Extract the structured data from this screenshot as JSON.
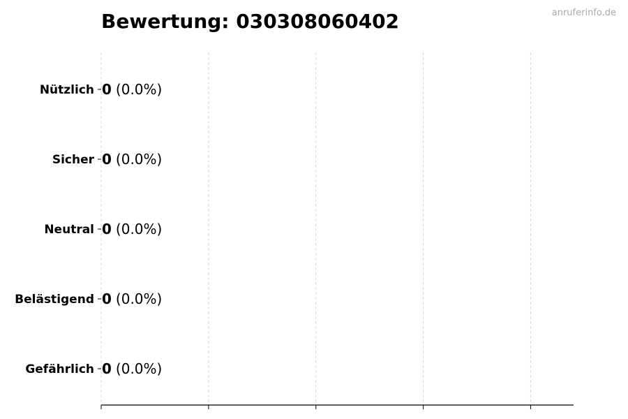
{
  "watermark": "anruferinfo.de",
  "chart_data": {
    "type": "bar",
    "orientation": "horizontal",
    "title": "Bewertung: 030308060402",
    "xlabel": "",
    "ylabel": "",
    "categories": [
      "Nützlich",
      "Sicher",
      "Neutral",
      "Belästigend",
      "Gefährlich"
    ],
    "values": [
      0,
      0,
      0,
      0,
      0
    ],
    "data_labels": [
      {
        "count": "0",
        "percent": "(0.0%)"
      },
      {
        "count": "0",
        "percent": "(0.0%)"
      },
      {
        "count": "0",
        "percent": "(0.0%)"
      },
      {
        "count": "0",
        "percent": "(0.0%)"
      },
      {
        "count": "0",
        "percent": "(0.0%)"
      }
    ],
    "xlim": [
      0,
      4.4
    ],
    "xticks": [
      0,
      1,
      2,
      3,
      4
    ],
    "xtick_labels_shown": false,
    "grid": "x, dashed",
    "legend": "none",
    "colors": {
      "bar_edge": "#000000",
      "grid": "#d9d9d9",
      "watermark": "#aaaaaa"
    }
  }
}
